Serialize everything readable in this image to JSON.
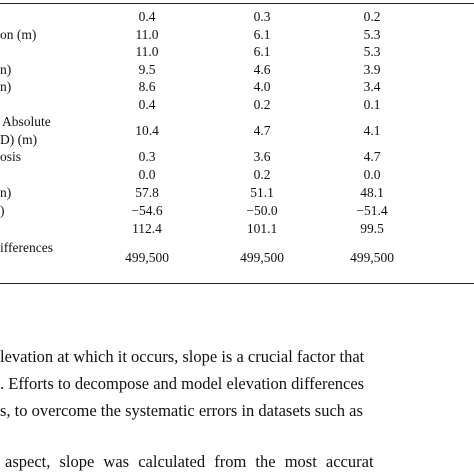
{
  "table": {
    "rows": [
      {
        "values": [
          "0.4",
          "0.3",
          "0.2"
        ]
      },
      {
        "label": "on (m)",
        "values": [
          "11.0",
          "6.1",
          "5.3"
        ]
      },
      {
        "values": [
          "11.0",
          "6.1",
          "5.3"
        ]
      },
      {
        "label": "n)",
        "values": [
          "9.5",
          "4.6",
          "3.9"
        ]
      },
      {
        "label": "n)",
        "values": [
          "8.6",
          "4.0",
          "3.4"
        ]
      },
      {
        "values": [
          "0.4",
          "0.2",
          "0.1"
        ]
      },
      {
        "label_lines": [
          "Absolute",
          "D) (m)"
        ],
        "values": [
          "10.4",
          "4.7",
          "4.1"
        ]
      },
      {
        "label": "osis",
        "values": [
          "0.3",
          "3.6",
          "4.7"
        ]
      },
      {
        "values": [
          "0.0",
          "0.2",
          "0.0"
        ]
      },
      {
        "label": "n)",
        "values": [
          "57.8",
          "51.1",
          "48.1"
        ]
      },
      {
        "label": ")",
        "values": [
          "−54.6",
          "−50.0",
          "−51.4"
        ]
      },
      {
        "values": [
          "112.4",
          "101.1",
          "99.5"
        ]
      },
      {
        "label": "ifferences",
        "values": [
          "499,500",
          "499,500",
          "499,500"
        ]
      }
    ]
  },
  "paragraphs": {
    "lines": [
      "levation at which it occurs, slope is a crucial factor that",
      ". Efforts to decompose and model elevation differences",
      "s, to overcome the systematic errors in datasets such as",
      "aspect, slope was calculated from the most accurat"
    ]
  }
}
